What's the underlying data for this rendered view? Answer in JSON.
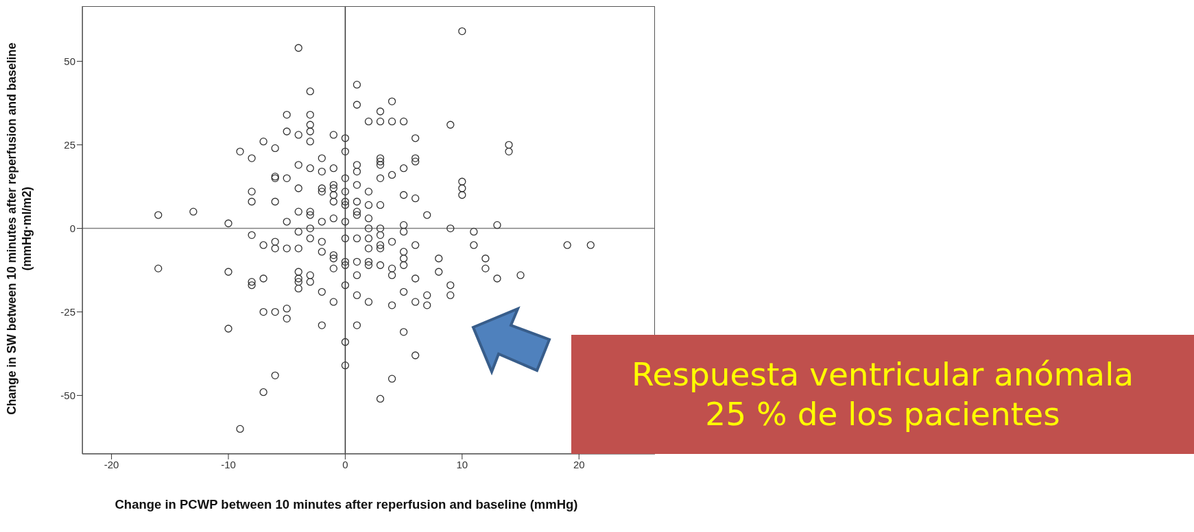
{
  "chart_data": {
    "type": "scatter",
    "xlabel": "Change in PCWP between 10 minutes after reperfusion and baseline (mmHg)",
    "ylabel": "Change in SW between 10 minutes after reperfusion and baseline (mmHg·ml/m2)",
    "x": [
      -16,
      -16,
      -13,
      -10,
      -10,
      -10,
      -9,
      -9,
      -8,
      -8,
      -8,
      -8,
      -8,
      -8,
      -7,
      -7,
      -7,
      -7,
      -7,
      -6,
      -6,
      -6,
      -6,
      -6,
      -6,
      -6,
      -6,
      -5,
      -5,
      -5,
      -5,
      -5,
      -5,
      -5,
      -4,
      -4,
      -4,
      -4,
      -4,
      -4,
      -4,
      -4,
      -4,
      -4,
      -4,
      -3,
      -3,
      -3,
      -3,
      -3,
      -3,
      -3,
      -3,
      -3,
      -3,
      -3,
      -3,
      -2,
      -2,
      -2,
      -2,
      -2,
      -2,
      -2,
      -2,
      -2,
      -1,
      -1,
      -1,
      -1,
      -1,
      -1,
      -1,
      -1,
      -1,
      -1,
      -1,
      0,
      0,
      0,
      0,
      0,
      0,
      0,
      0,
      0,
      0,
      0,
      0,
      0,
      1,
      1,
      1,
      1,
      1,
      1,
      1,
      1,
      1,
      1,
      1,
      1,
      1,
      2,
      2,
      2,
      2,
      2,
      2,
      2,
      2,
      2,
      2,
      3,
      3,
      3,
      3,
      3,
      3,
      3,
      3,
      3,
      3,
      3,
      3,
      3,
      4,
      4,
      4,
      4,
      4,
      4,
      4,
      4,
      5,
      5,
      5,
      5,
      5,
      5,
      5,
      5,
      5,
      5,
      6,
      6,
      6,
      6,
      6,
      6,
      6,
      6,
      7,
      7,
      7,
      8,
      8,
      9,
      9,
      9,
      9,
      10,
      10,
      10,
      10,
      11,
      11,
      12,
      12,
      13,
      13,
      14,
      14,
      15,
      19,
      21
    ],
    "values": [
      4,
      -12,
      5,
      1.5,
      -13,
      -30,
      23,
      -60,
      21,
      11,
      8,
      -2,
      -16,
      -17,
      26,
      -5,
      -15,
      -25,
      -49,
      24,
      15.5,
      15,
      8,
      -4,
      -6,
      -25,
      -44,
      34,
      29,
      15,
      2,
      -6,
      -24,
      -27,
      54,
      28,
      19,
      12,
      5,
      -1,
      -6,
      -13,
      -15,
      -16,
      -18,
      41,
      34,
      31,
      29,
      26,
      18,
      5,
      4,
      0,
      -3,
      -14,
      -16,
      21,
      17,
      12,
      11,
      2,
      -4,
      -7,
      -19,
      -29,
      28,
      18,
      13,
      12,
      10,
      8,
      3,
      -8,
      -9,
      -12,
      -22,
      27,
      23,
      15,
      11,
      8,
      7,
      2,
      -3,
      -10,
      -11,
      -17,
      -34,
      -41,
      43,
      37,
      19,
      17,
      13,
      8,
      5,
      4,
      -3,
      -10,
      -14,
      -20,
      -29,
      32,
      11,
      7,
      3,
      0,
      -3,
      -6,
      -11,
      -10,
      -22,
      35,
      32,
      21,
      20,
      19,
      15,
      7,
      0,
      -2,
      -5,
      -6,
      -11,
      -51,
      38,
      32,
      16,
      -4,
      -12,
      -14,
      -23,
      -45,
      32,
      18,
      10,
      1,
      -1,
      -7,
      -9,
      -11,
      -19,
      -31,
      27,
      21,
      20,
      9,
      -5,
      -15,
      -22,
      -38,
      4,
      -20,
      -23,
      -9,
      -13,
      31,
      0,
      -17,
      -20,
      59,
      14,
      12,
      10,
      -1,
      -5,
      -9,
      -12,
      1,
      -15,
      25,
      23,
      -14,
      -5,
      -5
    ],
    "color": "#333333",
    "marker": "circle",
    "xlim": [
      -22.5,
      26.5
    ],
    "ylim": [
      -67.5,
      66.5
    ],
    "xticks": [
      -20,
      -10,
      0,
      10,
      20
    ],
    "yticks": [
      -50,
      -25,
      0,
      25,
      50
    ],
    "ref_lines": [
      {
        "axis": "x",
        "value": 0,
        "color": "#333333"
      },
      {
        "axis": "y",
        "value": 0,
        "color": "#808080"
      }
    ],
    "annotations": [
      "Respuesta ventricular anómala",
      "25 % de los pacientes"
    ]
  }
}
